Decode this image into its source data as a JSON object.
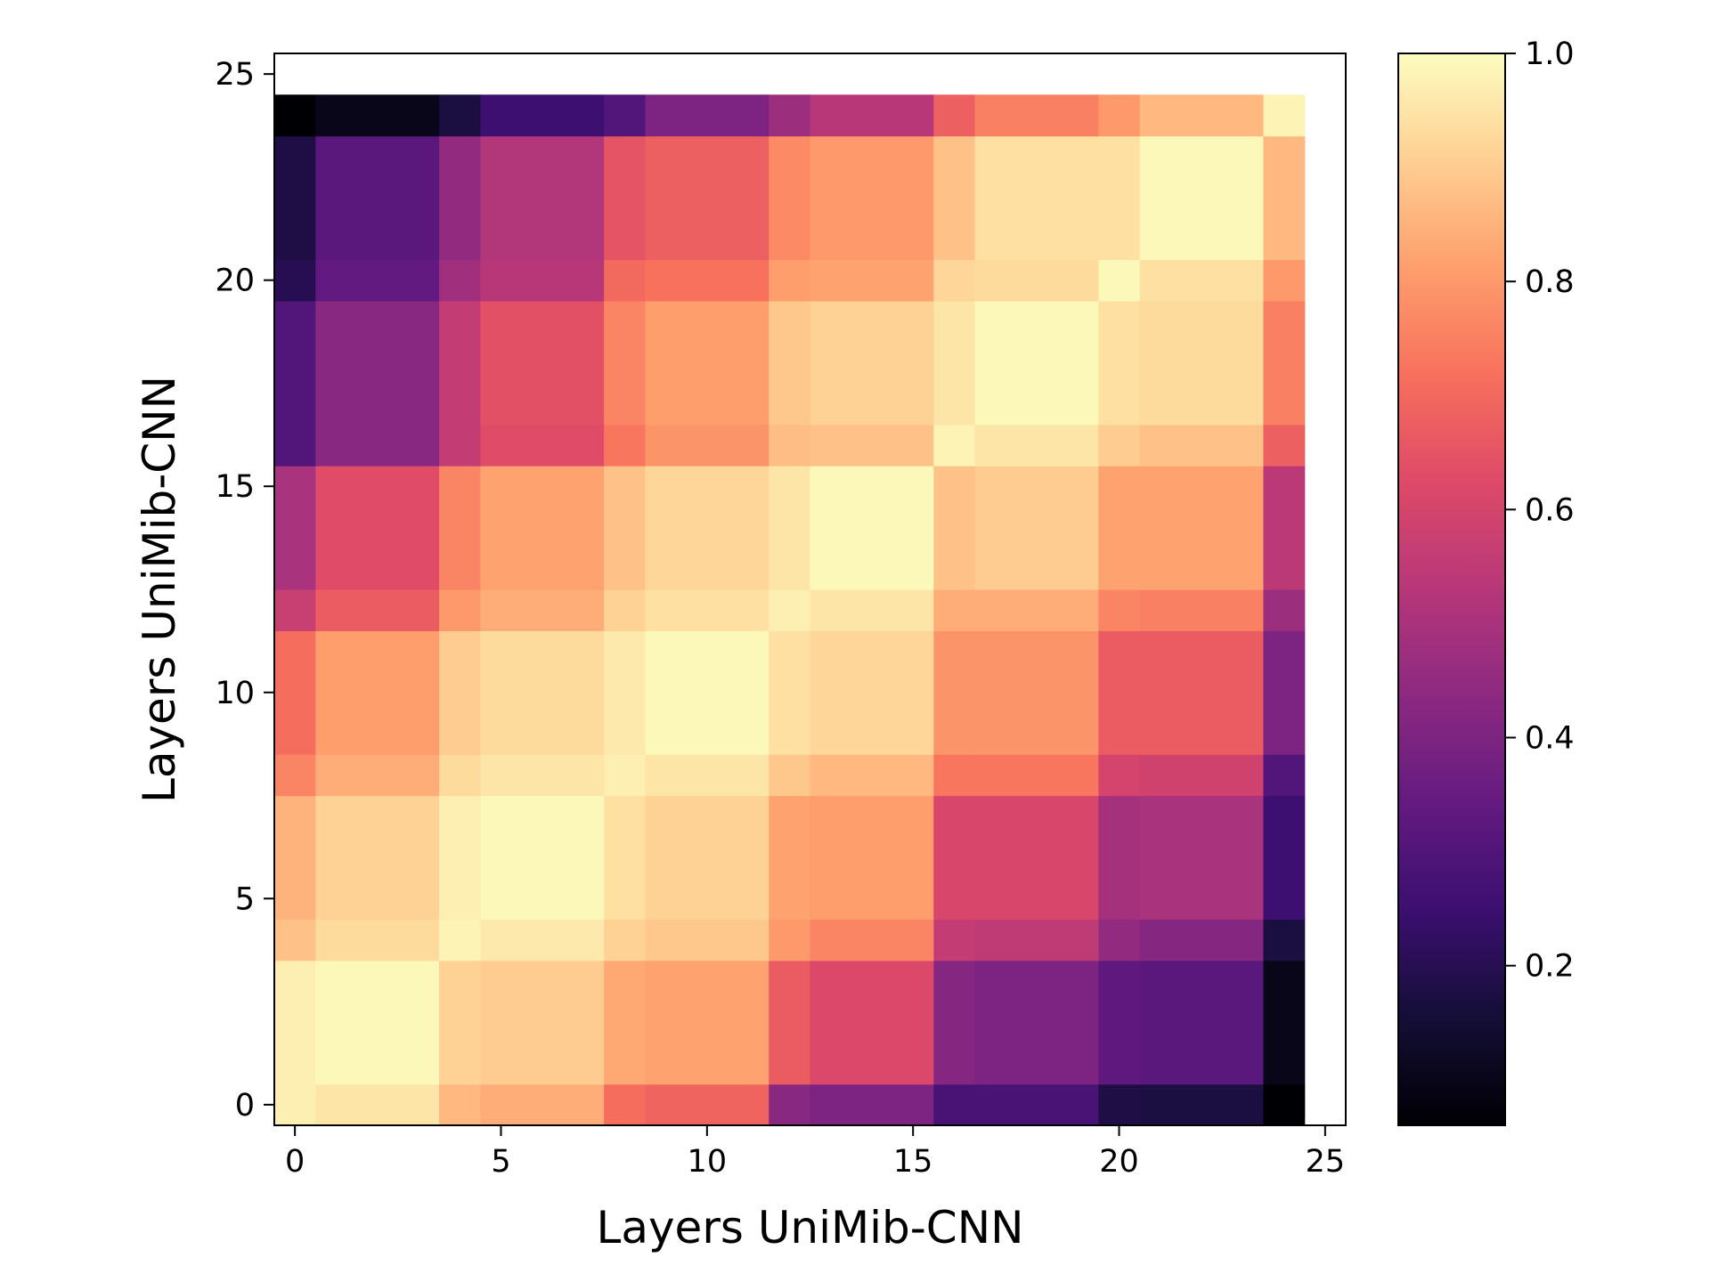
{
  "chart_data": {
    "type": "heatmap",
    "xlabel": "Layers UniMib-CNN",
    "ylabel": "Layers UniMib-CNN",
    "x_ticks": [
      0,
      5,
      10,
      15,
      20,
      25
    ],
    "y_ticks": [
      0,
      5,
      10,
      15,
      20,
      25
    ],
    "x_range": [
      -0.5,
      25.5
    ],
    "y_range": [
      -0.5,
      25.5
    ],
    "origin": "lower",
    "colormap": "magma",
    "colorbar": {
      "range": [
        0.06,
        1.0
      ],
      "ticks": [
        0.2,
        0.4,
        0.6,
        0.8,
        1.0
      ],
      "tick_labels": [
        "0.2",
        "0.4",
        "0.6",
        "0.8",
        "1.0"
      ]
    },
    "block_boundaries": [
      0,
      1,
      4,
      5,
      8,
      9,
      12,
      13,
      16,
      17,
      20,
      21,
      24,
      25
    ],
    "block_values": [
      [
        0.97,
        0.95,
        0.86,
        0.84,
        0.71,
        0.69,
        0.43,
        0.4,
        0.28,
        0.28,
        0.18,
        0.17,
        0.06
      ],
      [
        0.97,
        0.99,
        0.91,
        0.9,
        0.83,
        0.82,
        0.67,
        0.62,
        0.42,
        0.4,
        0.33,
        0.32,
        0.1
      ],
      [
        0.88,
        0.93,
        0.98,
        0.96,
        0.91,
        0.89,
        0.8,
        0.76,
        0.56,
        0.55,
        0.45,
        0.42,
        0.17
      ],
      [
        0.85,
        0.91,
        0.97,
        0.99,
        0.94,
        0.91,
        0.82,
        0.81,
        0.61,
        0.61,
        0.49,
        0.5,
        0.25
      ],
      [
        0.76,
        0.84,
        0.93,
        0.95,
        0.97,
        0.95,
        0.89,
        0.86,
        0.73,
        0.73,
        0.6,
        0.59,
        0.3
      ],
      [
        0.71,
        0.81,
        0.9,
        0.93,
        0.96,
        0.99,
        0.94,
        0.92,
        0.79,
        0.79,
        0.67,
        0.67,
        0.4
      ],
      [
        0.57,
        0.67,
        0.8,
        0.84,
        0.91,
        0.94,
        0.97,
        0.95,
        0.84,
        0.84,
        0.76,
        0.75,
        0.47
      ],
      [
        0.5,
        0.63,
        0.76,
        0.82,
        0.88,
        0.92,
        0.95,
        0.99,
        0.88,
        0.9,
        0.82,
        0.82,
        0.54
      ],
      [
        0.3,
        0.43,
        0.56,
        0.63,
        0.73,
        0.79,
        0.87,
        0.88,
        0.98,
        0.95,
        0.9,
        0.88,
        0.68
      ],
      [
        0.3,
        0.43,
        0.56,
        0.64,
        0.76,
        0.81,
        0.89,
        0.91,
        0.95,
        0.99,
        0.94,
        0.93,
        0.75
      ],
      [
        0.2,
        0.34,
        0.48,
        0.53,
        0.7,
        0.72,
        0.81,
        0.82,
        0.92,
        0.93,
        0.99,
        0.94,
        0.8
      ],
      [
        0.18,
        0.32,
        0.45,
        0.52,
        0.65,
        0.68,
        0.77,
        0.8,
        0.88,
        0.94,
        0.94,
        0.99,
        0.86
      ],
      [
        0.06,
        0.1,
        0.17,
        0.25,
        0.3,
        0.4,
        0.47,
        0.53,
        0.68,
        0.75,
        0.8,
        0.86,
        0.98
      ]
    ]
  }
}
